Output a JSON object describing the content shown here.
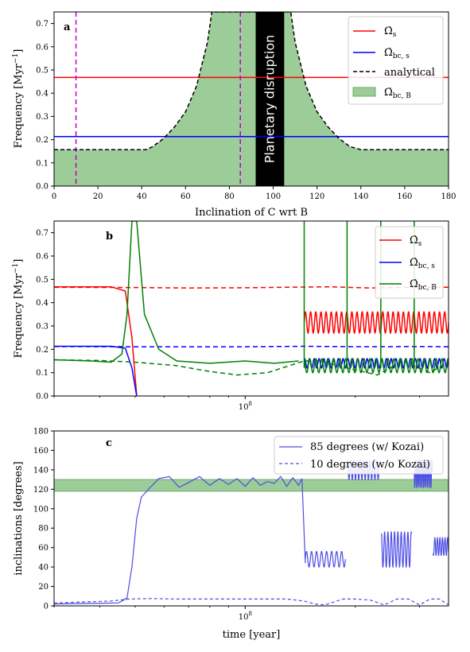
{
  "chart_data": [
    {
      "type": "area",
      "panel_label": "a",
      "xlabel": "Inclination of C wrt B",
      "ylabel": "Frequency [Myr$^{-1}$]",
      "xlim": [
        0,
        180
      ],
      "ylim": [
        0,
        0.75
      ],
      "xticks": [
        "0",
        "20",
        "40",
        "60",
        "80",
        "100",
        "120",
        "140",
        "160",
        "180"
      ],
      "yticks": [
        "0.0",
        "0.1",
        "0.2",
        "0.3",
        "0.4",
        "0.5",
        "0.6",
        "0.7"
      ],
      "legend_position": "top-right",
      "legend": [
        "Ω̇s",
        "Ω̇bc,s",
        "analytical",
        "Ω̇bc,B"
      ],
      "hlines": [
        {
          "name": "Ω̇s",
          "y": 0.468,
          "color": "#ff0000"
        },
        {
          "name": "Ω̇bc,s",
          "y": 0.213,
          "color": "#0000ff"
        }
      ],
      "vlines": [
        10,
        85
      ],
      "vline_color": "#bf00bf",
      "disruption_band": {
        "x": [
          92,
          105
        ],
        "label": "Planetary disruption"
      },
      "analytical": {
        "name": "analytical",
        "x": [
          0,
          42,
          45,
          50,
          55,
          60,
          65,
          70,
          72,
          108,
          110,
          115,
          120,
          125,
          130,
          135,
          140,
          144,
          180
        ],
        "y": [
          0.157,
          0.157,
          0.17,
          0.205,
          0.255,
          0.32,
          0.43,
          0.62,
          0.75,
          0.75,
          0.62,
          0.43,
          0.32,
          0.255,
          0.205,
          0.17,
          0.157,
          0.157,
          0.157
        ]
      },
      "fill_color": "#9ccc98",
      "fill_name": "Ω̇bc,B"
    },
    {
      "type": "line",
      "panel_label": "b",
      "xlabel": "",
      "ylabel": "Frequency [Myr$^{-1}$]",
      "xscale": "log",
      "xlim": [
        30000000.0,
        360000000.0
      ],
      "ylim": [
        0,
        0.75
      ],
      "xtick_major": "10^8",
      "yticks": [
        "0.0",
        "0.1",
        "0.2",
        "0.3",
        "0.4",
        "0.5",
        "0.6",
        "0.7"
      ],
      "legend_position": "top-right",
      "series": [
        {
          "name": "Ω̇s",
          "color": "#ff0000",
          "solid": {
            "x": [
              30000000.0,
              43000000.0,
              47000000.0,
              49000000.0,
              50500000.0
            ],
            "y": [
              0.468,
              0.468,
              0.45,
              0.25,
              0
            ]
          },
          "osc": {
            "x0": 145000000.0,
            "x1": 360000000.0,
            "lo": 0.27,
            "hi": 0.36
          },
          "dashed": {
            "x": [
              30000000.0,
              50000000.0,
              70000000.0,
              100000000.0,
              145000000.0,
              170000000.0,
              220000000.0,
              300000000.0,
              360000000.0
            ],
            "y": [
              0.466,
              0.465,
              0.463,
              0.464,
              0.467,
              0.468,
              0.463,
              0.467,
              0.466
            ]
          }
        },
        {
          "name": "Ω̇bc,s",
          "color": "#0000ff",
          "solid": {
            "x": [
              30000000.0,
              43000000.0,
              47000000.0,
              49000000.0,
              50500000.0
            ],
            "y": [
              0.213,
              0.213,
              0.205,
              0.12,
              0
            ]
          },
          "osc": {
            "x0": 145000000.0,
            "x1": 360000000.0,
            "lo": 0.12,
            "hi": 0.16
          },
          "dashed": {
            "x": [
              30000000.0,
              50000000.0,
              70000000.0,
              100000000.0,
              145000000.0,
              170000000.0,
              220000000.0,
              300000000.0,
              360000000.0
            ],
            "y": [
              0.212,
              0.211,
              0.211,
              0.211,
              0.213,
              0.212,
              0.211,
              0.212,
              0.211
            ]
          }
        },
        {
          "name": "Ω̇bc,B",
          "color": "#008000",
          "solid": {
            "x": [
              30000000.0,
              38000000.0,
              43000000.0,
              46000000.0,
              47500000.0,
              49000000.0,
              50500000.0,
              53000000.0,
              58000000.0,
              65000000.0,
              80000000.0,
              100000000.0,
              120000000.0,
              140000000.0
            ],
            "y": [
              0.155,
              0.15,
              0.145,
              0.18,
              0.35,
              0.75,
              0.75,
              0.35,
              0.2,
              0.15,
              0.14,
              0.15,
              0.14,
              0.15
            ]
          },
          "osc": {
            "x0": 145000000.0,
            "x1": 360000000.0,
            "lo": 0.1,
            "hi": 0.16
          },
          "dashed": {
            "x": [
              30000000.0,
              40000000.0,
              50000000.0,
              65000000.0,
              80000000.0,
              95000000.0,
              115000000.0,
              145000000.0,
              160000000.0,
              190000000.0,
              230000000.0,
              270000000.0,
              320000000.0,
              360000000.0
            ],
            "y": [
              0.155,
              0.152,
              0.145,
              0.13,
              0.105,
              0.09,
              0.1,
              0.15,
              0.15,
              0.12,
              0.09,
              0.15,
              0.1,
              0.145
            ]
          }
        }
      ],
      "spikes": [
        145000000.0,
        190000000.0,
        235000000.0,
        290000000.0
      ]
    },
    {
      "type": "line",
      "panel_label": "c",
      "xlabel": "time [year]",
      "ylabel": "inclinations [degrees]",
      "xscale": "log",
      "xlim": [
        30000000.0,
        360000000.0
      ],
      "ylim": [
        0,
        180
      ],
      "xtick_major": "10^8",
      "yticks": [
        "0",
        "20",
        "40",
        "60",
        "80",
        "100",
        "120",
        "140",
        "160",
        "180"
      ],
      "legend_position": "top-right",
      "band": {
        "y": [
          118,
          130
        ],
        "color": "#9ccc98"
      },
      "series": [
        {
          "name": "85 degrees (w/ Kozai)",
          "style": "solid",
          "color": "#4c4ce6",
          "x": [
            30000000.0,
            45000000.0,
            47500000.0,
            49000000.0,
            50500000.0,
            52000000.0,
            55000000.0,
            58000000.0,
            62000000.0,
            66000000.0,
            70000000.0,
            75000000.0,
            80000000.0,
            85000000.0,
            90000000.0,
            95000000.0,
            100000000.0,
            105000000.0,
            110000000.0,
            115000000.0,
            120000000.0,
            125000000.0,
            130000000.0,
            135000000.0,
            140000000.0,
            143000000.0,
            146000000.0
          ],
          "y": [
            2,
            3,
            8,
            40,
            90,
            112,
            122,
            131,
            133,
            122,
            127,
            133,
            124,
            131,
            125,
            131,
            123,
            132,
            124,
            128,
            126,
            133,
            123,
            132,
            124,
            131,
            44
          ],
          "osc_ranges": [
            {
              "x0": 146000000.0,
              "x1": 188000000.0,
              "lo": 40,
              "hi": 56
            },
            {
              "x0": 190000000.0,
              "x1": 233000000.0,
              "lo": 130,
              "hi": 150
            },
            {
              "x0": 236000000.0,
              "x1": 285000000.0,
              "lo": 40,
              "hi": 76
            },
            {
              "x0": 290000000.0,
              "x1": 325000000.0,
              "lo": 122,
              "hi": 150
            },
            {
              "x0": 327000000.0,
              "x1": 360000000.0,
              "lo": 52,
              "hi": 70
            }
          ]
        },
        {
          "name": "10 degrees (w/o Kozai)",
          "style": "dashed",
          "color": "#4c4ce6",
          "x": [
            30000000.0,
            36000000.0,
            43000000.0,
            48000000.0,
            55000000.0,
            65000000.0,
            80000000.0,
            100000000.0,
            130000000.0,
            145000000.0,
            155000000.0,
            165000000.0,
            175000000.0,
            185000000.0,
            200000000.0,
            220000000.0,
            240000000.0,
            260000000.0,
            280000000.0,
            300000000.0,
            320000000.0,
            340000000.0,
            360000000.0
          ],
          "y": [
            3,
            4,
            5,
            7,
            7.5,
            7,
            7,
            7,
            7,
            5,
            2,
            1,
            4,
            7,
            7,
            6,
            1,
            7,
            7,
            1,
            7,
            7,
            1
          ]
        }
      ]
    }
  ]
}
